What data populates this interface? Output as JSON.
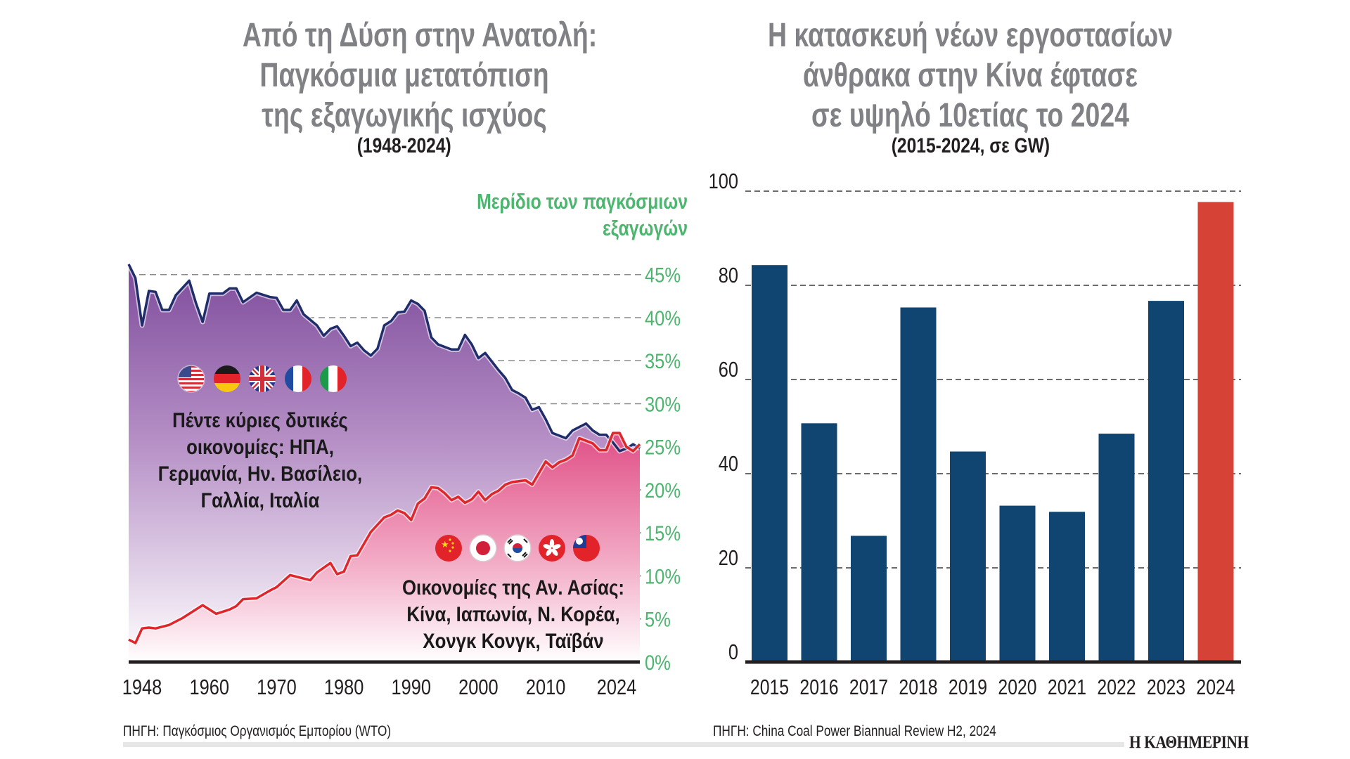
{
  "left_panel": {
    "title_lines": [
      "Από τη Δύση στην Ανατολή:",
      "Παγκόσμια μετατόπιση",
      "της εξαγωγικής ισχύος"
    ],
    "subtitle": "(1948-2024)",
    "axis_title_lines": [
      "Μερίδιο των παγκόσμιων",
      "εξαγωγών"
    ],
    "source": "ΠΗΓΗ: Παγκόσμιος Οργανισμός Εμπορίου (WTO)",
    "west_label_lines": [
      "Πέντε κύριες δυτικές",
      "οικονομίες: ΗΠΑ,",
      "Γερμανία, Ην. Βασίλειο,",
      "Γαλλία, Ιταλία"
    ],
    "east_label_lines": [
      "Οικονομίες της Αν. Ασίας:",
      "Κίνα, Ιαπωνία, Ν. Κορέα,",
      "Χονγκ Κονγκ, Ταϊβάν"
    ],
    "west_flags": [
      "us-flag-icon",
      "germany-flag-icon",
      "uk-flag-icon",
      "france-flag-icon",
      "italy-flag-icon"
    ],
    "east_flags": [
      "china-flag-icon",
      "japan-flag-icon",
      "south-korea-flag-icon",
      "hong-kong-flag-icon",
      "taiwan-flag-icon"
    ]
  },
  "right_panel": {
    "title_lines": [
      "Η κατασκευή νέων εργοστασίων",
      "άνθρακα στην Κίνα έφτασε",
      "σε υψηλό 10ετίας το 2024"
    ],
    "subtitle": "(2015-2024, σε GW)",
    "source": "ΠΗΓΗ: China Coal Power Biannual Review H2, 2024"
  },
  "brand": {
    "logo": "Η ΚΑΘΗΜΕΡΙΝΗ"
  },
  "colors": {
    "title": "#808184",
    "green": "#4cb56e",
    "west_line": "#1f2d6b",
    "east_line": "#e0262b",
    "bar": "#0f4570",
    "bar_highlight": "#d64236",
    "west_fill_top": "#8a5aa5",
    "east_fill": "#e4578a"
  },
  "chart_data": [
    {
      "type": "area",
      "title": "Από τη Δύση στην Ανατολή: Παγκόσμια μετατόπιση της εξαγωγικής ισχύος",
      "subtitle": "(1948-2024)",
      "xlabel": "",
      "ylabel": "Μερίδιο των παγκόσμιων εξαγωγών",
      "xlim": [
        1948,
        2024
      ],
      "ylim": [
        0,
        45
      ],
      "x_tick_labels": [
        "1948",
        "1960",
        "1970",
        "1980",
        "1990",
        "2000",
        "2010",
        "2024"
      ],
      "x_ticks": [
        1948,
        1960,
        1970,
        1980,
        1990,
        2000,
        2010,
        2024
      ],
      "y_ticks": [
        0,
        5,
        10,
        15,
        20,
        25,
        30,
        35,
        40,
        45
      ],
      "y_tick_labels": [
        "0%",
        "5%",
        "10%",
        "15%",
        "20%",
        "25%",
        "30%",
        "35%",
        "40%",
        "45%"
      ],
      "grid": true,
      "y_axis_side": "right",
      "series": [
        {
          "name": "Πέντε κύριες δυτικές οικονομίες: ΗΠΑ, Γερμανία, Ην. Βασίλειο, Γαλλία, Ιταλία",
          "x": [
            1948,
            1949,
            1950,
            1951,
            1952,
            1953,
            1954,
            1955,
            1957,
            1958,
            1959,
            1960,
            1962,
            1963,
            1964,
            1965,
            1967,
            1969,
            1970,
            1971,
            1972,
            1973,
            1974,
            1976,
            1977,
            1978,
            1979,
            1980,
            1981,
            1982,
            1983,
            1984,
            1985,
            1986,
            1987,
            1988,
            1989,
            1990,
            1991,
            1992,
            1993,
            1994,
            1996,
            1997,
            1998,
            1999,
            2000,
            2001,
            2002,
            2003,
            2004,
            2005,
            2006,
            2007,
            2008,
            2009,
            2010,
            2011,
            2013,
            2014,
            2016,
            2017,
            2018,
            2019,
            2020,
            2021,
            2022,
            2023,
            2024
          ],
          "values": [
            46.2,
            44.6,
            39.1,
            43.1,
            43.0,
            40.9,
            40.9,
            42.6,
            44.3,
            41.7,
            39.5,
            42.8,
            42.8,
            43.4,
            43.4,
            41.8,
            42.9,
            42.4,
            42.3,
            40.9,
            40.9,
            42.0,
            40.4,
            39.1,
            37.9,
            38.7,
            39.0,
            37.9,
            36.7,
            37.1,
            36.2,
            35.6,
            36.4,
            39.1,
            39.6,
            40.6,
            40.7,
            42.0,
            41.6,
            40.8,
            37.7,
            36.9,
            36.3,
            36.3,
            38.0,
            36.9,
            35.3,
            35.9,
            34.9,
            33.9,
            33.0,
            31.6,
            31.2,
            30.7,
            29.3,
            29.6,
            28.2,
            26.6,
            26.0,
            26.9,
            27.7,
            26.9,
            26.4,
            26.4,
            25.5,
            24.5,
            24.8,
            25.3,
            24.8
          ]
        },
        {
          "name": "Οικονομίες της Αν. Ασίας: Κίνα, Ιαπωνία, Ν. Κορέα, Χονγκ Κονγκ, Ταϊβάν",
          "x": [
            1948,
            1949,
            1950,
            1951,
            1952,
            1954,
            1956,
            1959,
            1961,
            1963,
            1964,
            1965,
            1967,
            1969,
            1970,
            1972,
            1975,
            1976,
            1978,
            1979,
            1980,
            1981,
            1982,
            1984,
            1986,
            1987,
            1988,
            1989,
            1990,
            1991,
            1992,
            1993,
            1994,
            1995,
            1996,
            1997,
            1998,
            1999,
            2000,
            2001,
            2002,
            2003,
            2004,
            2005,
            2007,
            2008,
            2010,
            2011,
            2012,
            2013,
            2014,
            2015,
            2017,
            2018,
            2019,
            2020,
            2021,
            2022,
            2023,
            2024
          ],
          "values": [
            2.6,
            2.2,
            3.9,
            4.0,
            3.9,
            4.3,
            5.1,
            6.6,
            5.6,
            6.1,
            6.5,
            7.3,
            7.4,
            8.3,
            8.7,
            10.1,
            9.5,
            10.4,
            11.5,
            10.2,
            10.5,
            12.3,
            12.4,
            15.1,
            16.8,
            17.1,
            17.6,
            17.3,
            16.5,
            18.4,
            19.0,
            20.3,
            20.2,
            19.6,
            18.8,
            19.2,
            18.5,
            18.9,
            19.8,
            18.8,
            19.5,
            19.9,
            20.6,
            20.9,
            21.1,
            20.6,
            23.3,
            22.6,
            23.2,
            23.5,
            24.0,
            26.0,
            25.4,
            24.6,
            24.6,
            26.6,
            26.6,
            25.0,
            24.5,
            25.3
          ]
        }
      ]
    },
    {
      "type": "bar",
      "title": "Η κατασκευή νέων εργοστασίων άνθρακα στην Κίνα έφτασε σε υψηλό 10ετίας το 2024",
      "subtitle": "(2015-2024, σε GW)",
      "xlabel": "",
      "ylabel": "GW",
      "categories": [
        "2015",
        "2016",
        "2017",
        "2018",
        "2019",
        "2020",
        "2021",
        "2022",
        "2023",
        "2024"
      ],
      "values": [
        84.3,
        50.7,
        26.8,
        75.3,
        44.7,
        33.2,
        31.9,
        48.5,
        76.7,
        97.7
      ],
      "highlight": "2024",
      "ylim": [
        0,
        100
      ],
      "y_ticks": [
        0,
        20,
        40,
        60,
        80,
        100
      ],
      "y_tick_labels": [
        "0",
        "20",
        "40",
        "60",
        "80",
        "100"
      ],
      "grid": true
    }
  ]
}
